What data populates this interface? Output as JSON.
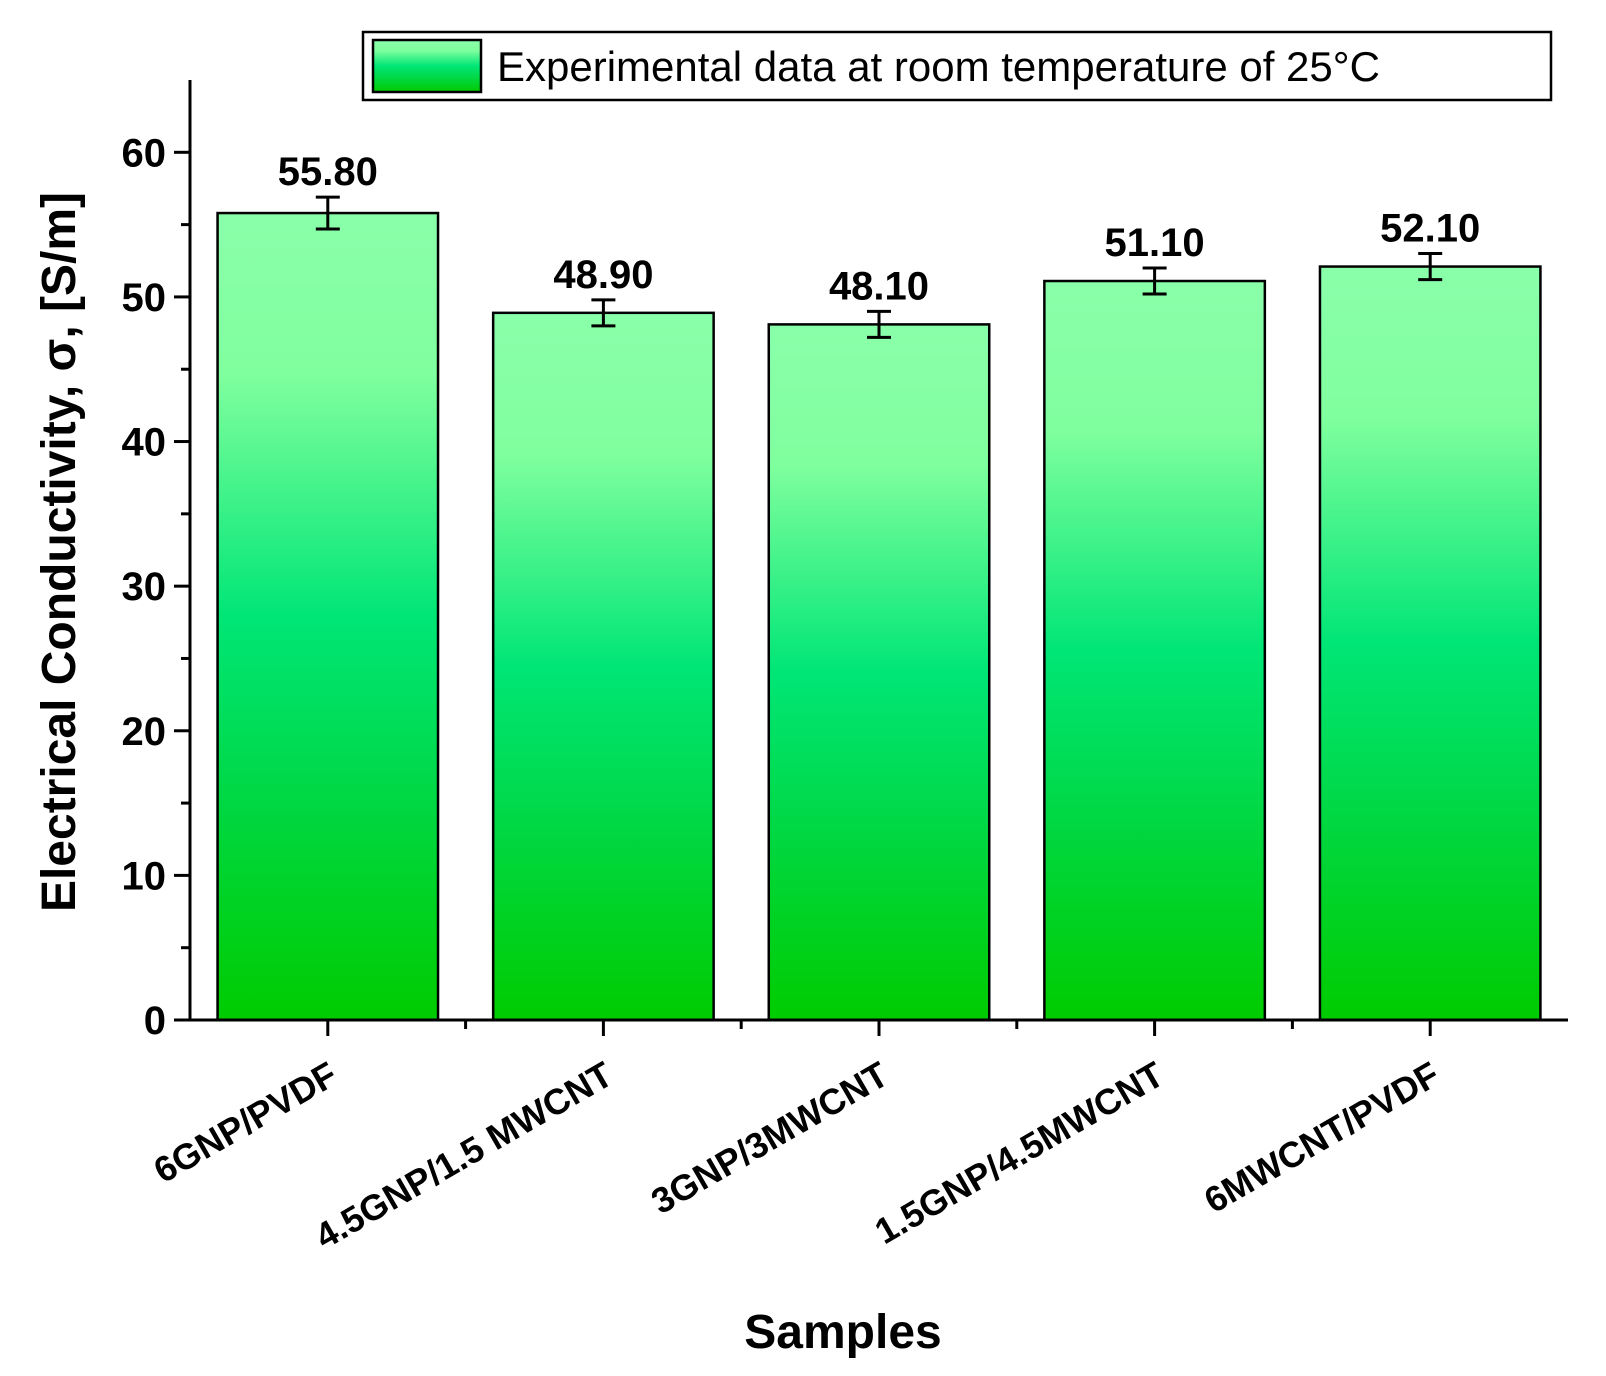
{
  "chart_data": {
    "type": "bar",
    "categories": [
      "6GNP/PVDF",
      "4.5GNP/1.5 MWCNT",
      "3GNP/3MWCNT",
      "1.5GNP/4.5MWCNT",
      "6MWCNT/PVDF"
    ],
    "series": [
      {
        "name": "Experimental data at room temperature of 25°C",
        "values": [
          55.8,
          48.9,
          48.1,
          51.1,
          52.1
        ],
        "error": [
          1.1,
          0.9,
          0.9,
          0.9,
          0.9
        ],
        "labels": [
          "55.80",
          "48.90",
          "48.10",
          "51.10",
          "52.10"
        ]
      }
    ],
    "title": "",
    "xlabel": "Samples",
    "ylabel": "Electrical Conductivity, σ, [S/m]",
    "ylim": [
      0,
      65
    ],
    "yticks": [
      0,
      10,
      20,
      30,
      40,
      50,
      60
    ],
    "grid": false,
    "legend_position": "top-right",
    "colors": {
      "bar_top": "#8affaa",
      "bar_mid": "#00e676",
      "bar_bottom": "#00cc00",
      "outline": "#000000"
    }
  }
}
